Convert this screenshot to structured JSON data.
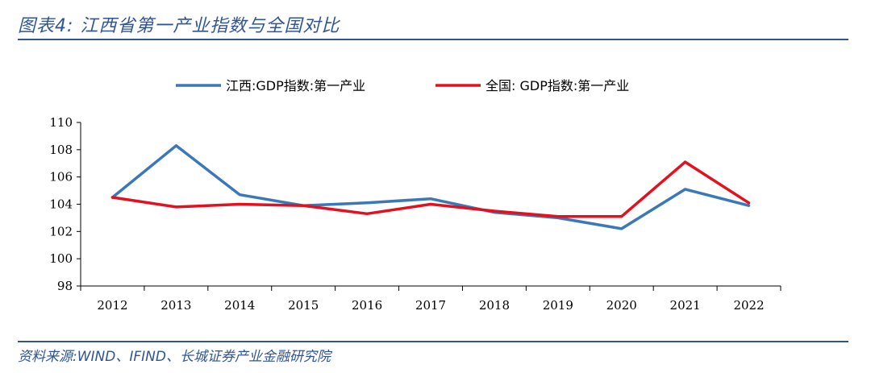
{
  "header": {
    "title": "图表4:  江西省第一产业指数与全国对比"
  },
  "footer": {
    "source": "资料来源:WIND、IFIND、长城证券产业金融研究院"
  },
  "chart_data": {
    "type": "line",
    "title": "江西省第一产业指数与全国对比",
    "xlabel": "",
    "ylabel": "",
    "categories": [
      "2012",
      "2013",
      "2014",
      "2015",
      "2016",
      "2017",
      "2018",
      "2019",
      "2020",
      "2021",
      "2022"
    ],
    "ylim": [
      98,
      110
    ],
    "yticks": [
      98,
      100,
      102,
      104,
      106,
      108,
      110
    ],
    "legend_position": "top-center",
    "grid": false,
    "series": [
      {
        "name": "江西:GDP指数:第一产业",
        "color": "#3a78b8",
        "values": [
          104.5,
          108.3,
          104.7,
          103.9,
          104.1,
          104.4,
          103.4,
          103.0,
          102.2,
          105.1,
          103.9
        ]
      },
      {
        "name": "全国: GDP指数:第一产业",
        "color": "#e3101f",
        "values": [
          104.5,
          103.8,
          104.0,
          103.9,
          103.3,
          104.0,
          103.5,
          103.1,
          103.1,
          107.1,
          104.1
        ]
      }
    ]
  }
}
